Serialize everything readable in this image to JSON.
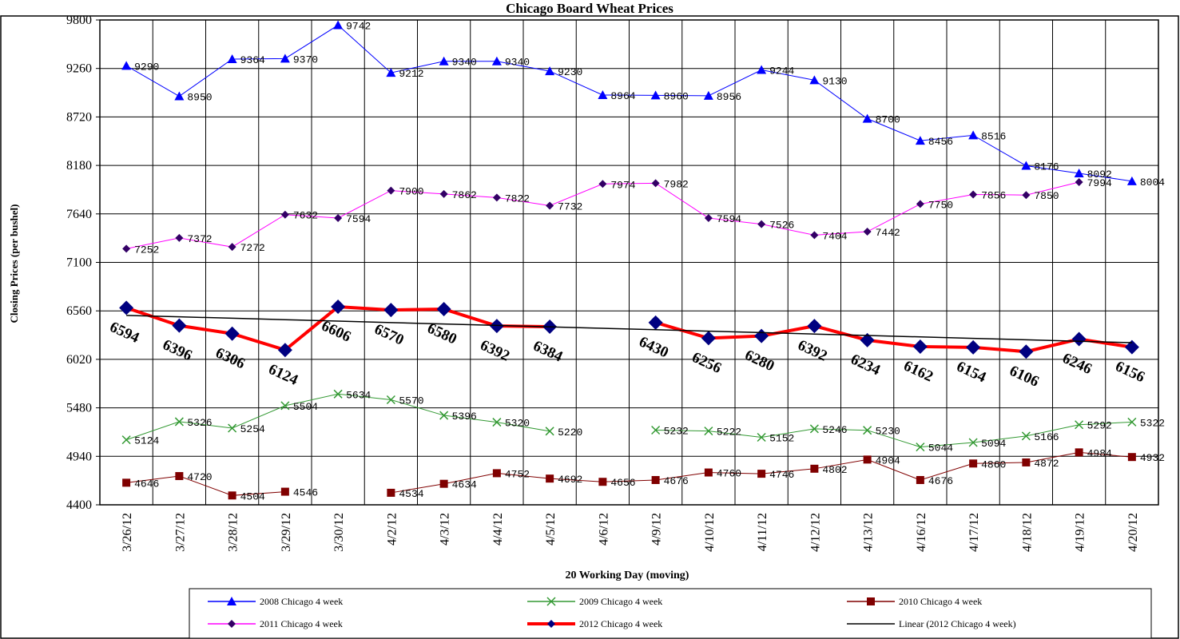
{
  "chart_data": {
    "type": "line",
    "title": "Chicago Board Wheat Prices",
    "x_label": "20 Working Day (moving)",
    "y_label": "Closing Prices (per bushel)",
    "categories": [
      "3/26/12",
      "3/27/12",
      "3/28/12",
      "3/29/12",
      "3/30/12",
      "4/2/12",
      "4/3/12",
      "4/4/12",
      "4/5/12",
      "4/6/12",
      "4/9/12",
      "4/10/12",
      "4/11/12",
      "4/12/12",
      "4/13/12",
      "4/16/12",
      "4/17/12",
      "4/18/12",
      "4/19/12",
      "4/20/12"
    ],
    "ylim": [
      4400,
      9800
    ],
    "yticks": [
      4400,
      4940,
      5480,
      6020,
      6560,
      7100,
      7640,
      8180,
      8720,
      9260,
      9800
    ],
    "grid": true,
    "legend": "bottom",
    "series": [
      {
        "name": "2008 Chicago 4 week",
        "color": "#0000ff",
        "marker": "triangle",
        "marker_color": "#0000ff",
        "values": [
          9290,
          8950,
          9364,
          9370,
          9742,
          9212,
          9340,
          9340,
          9230,
          8964,
          8960,
          8956,
          9244,
          9130,
          8700,
          8456,
          8516,
          8176,
          8092,
          8004
        ]
      },
      {
        "name": "2009 Chicago 4 week",
        "color": "#339933",
        "marker": "x",
        "marker_color": "#339933",
        "values": [
          5124,
          5326,
          5254,
          5504,
          5634,
          5570,
          5396,
          5320,
          5220,
          null,
          5232,
          5222,
          5152,
          5246,
          5230,
          5044,
          5094,
          5166,
          5292,
          5322
        ]
      },
      {
        "name": "2010 Chicago 4 week",
        "color": "#800000",
        "marker": "square",
        "marker_color": "#800000",
        "values": [
          4646,
          4720,
          4504,
          4546,
          null,
          4534,
          4634,
          4752,
          4692,
          4656,
          4676,
          4760,
          4746,
          4802,
          4904,
          4676,
          4860,
          4872,
          4984,
          4932
        ]
      },
      {
        "name": "2011 Chicago 4 week",
        "color": "#ff00ff",
        "marker": "diamond",
        "marker_color": "#330066",
        "values": [
          7252,
          7372,
          7272,
          7632,
          7594,
          7900,
          7862,
          7822,
          7732,
          7974,
          7982,
          7594,
          7526,
          7404,
          7442,
          7750,
          7856,
          7850,
          7994,
          null
        ]
      },
      {
        "name": "2012 Chicago 4 week",
        "color": "#ff0000",
        "marker": "diamond",
        "marker_color": "#000080",
        "bold_labels": true,
        "values": [
          6594,
          6396,
          6306,
          6124,
          6606,
          6570,
          6580,
          6392,
          6384,
          null,
          6430,
          6256,
          6280,
          6392,
          6234,
          6162,
          6154,
          6106,
          6246,
          6156
        ]
      },
      {
        "name": "Linear (2012 Chicago 4 week)",
        "color": "#000000",
        "marker": "none",
        "values": [
          6510,
          6494,
          6478,
          6462,
          6446,
          6430,
          6414,
          6398,
          6382,
          6366,
          6350,
          6334,
          6318,
          6302,
          6286,
          6270,
          6254,
          6238,
          6222,
          6206
        ]
      }
    ]
  }
}
